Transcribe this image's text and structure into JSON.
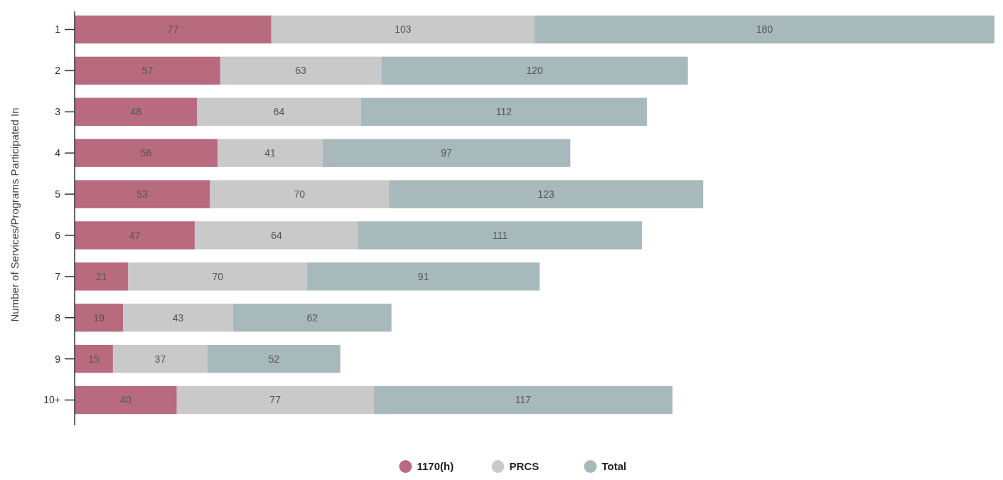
{
  "chart_data": {
    "type": "bar",
    "orientation": "horizontal",
    "stacked": true,
    "ylabel": "Number of Services/Programs Participated In",
    "categories": [
      "1",
      "2",
      "3",
      "4",
      "5",
      "6",
      "7",
      "8",
      "9",
      "10+"
    ],
    "series": [
      {
        "name": "1170(h)",
        "color": "#b86b7e",
        "values": [
          77,
          57,
          48,
          56,
          53,
          47,
          21,
          19,
          15,
          40
        ]
      },
      {
        "name": "PRCS",
        "color": "#c9c9c9",
        "values": [
          103,
          63,
          64,
          41,
          70,
          64,
          70,
          43,
          37,
          77
        ]
      },
      {
        "name": "Total",
        "color": "#a8b9bb",
        "values": [
          180,
          120,
          112,
          97,
          123,
          111,
          91,
          62,
          52,
          117
        ]
      }
    ],
    "data_labels": true,
    "legend": "bottom"
  }
}
